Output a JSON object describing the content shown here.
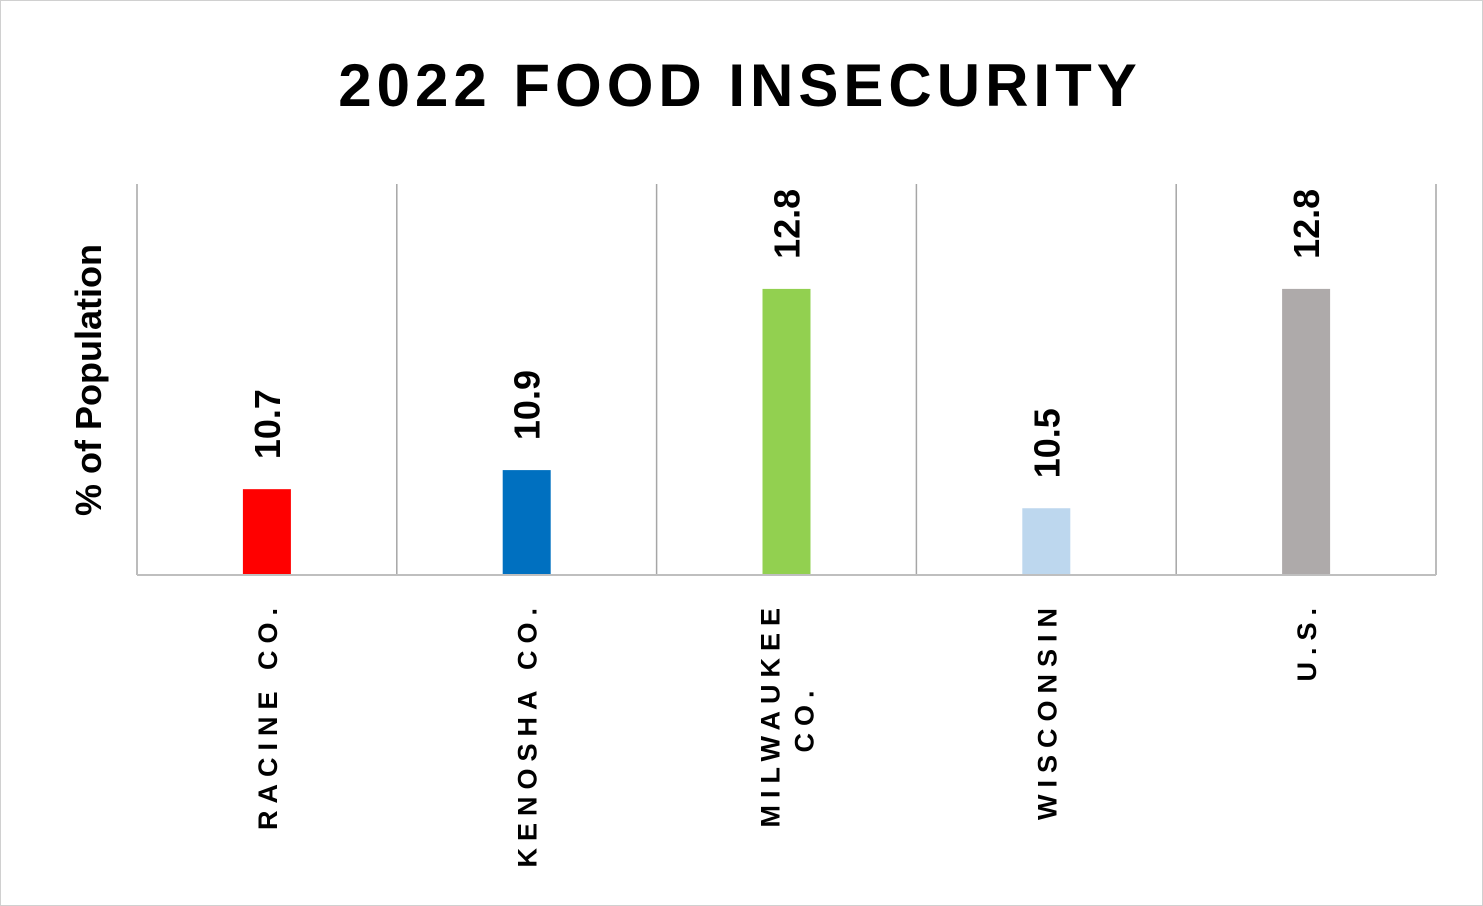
{
  "chart_data": {
    "type": "bar",
    "title": "2022 FOOD INSECURITY",
    "xlabel": "",
    "ylabel": "% of Population",
    "categories": [
      [
        "RACINE CO."
      ],
      [
        "KENOSHA CO."
      ],
      [
        "MILWAUKEE",
        "CO."
      ],
      [
        "WISCONSIN"
      ],
      [
        "U.S."
      ]
    ],
    "values": [
      10.7,
      10.9,
      12.8,
      10.5,
      12.8
    ],
    "value_labels": [
      "10.7",
      "10.9",
      "12.8",
      "10.5",
      "12.8"
    ],
    "colors": [
      "#ff0000",
      "#0070c0",
      "#92d050",
      "#bdd7ee",
      "#aeaaaa"
    ],
    "ylim": [
      9.8,
      13.9
    ],
    "grid": "vertical separators between categories",
    "legend": "none"
  }
}
